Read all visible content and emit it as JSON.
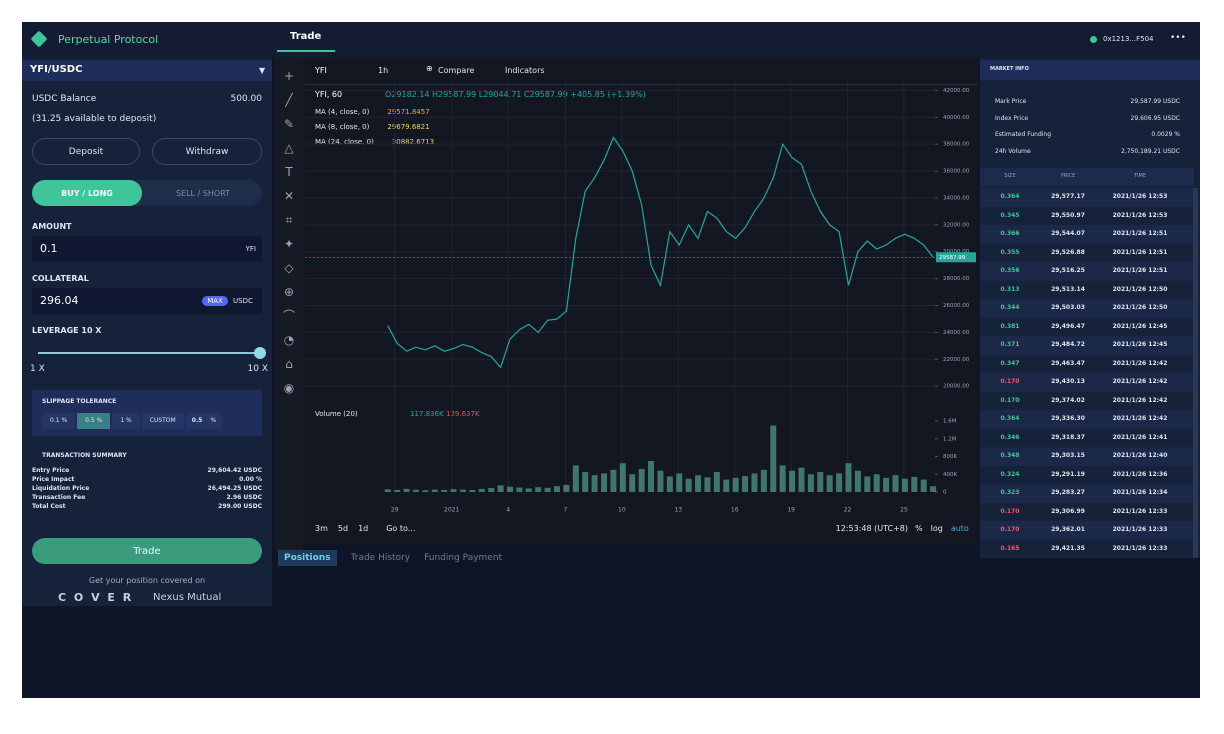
{
  "header": {
    "logo": "Perpetual Protocol",
    "tab": "Trade",
    "wallet": "0x1213...F504",
    "menu": "•••"
  },
  "order": {
    "pair": "YFI/USDC",
    "balance_label": "USDC Balance",
    "balance": "500.00",
    "available": "(31.25 available to deposit)",
    "deposit": "Deposit",
    "withdraw": "Withdraw",
    "buy": "BUY / LONG",
    "sell": "SELL / SHORT",
    "amount_label": "AMOUNT",
    "amount": "0.1",
    "amount_unit": "YFI",
    "collateral_label": "COLLATERAL",
    "collateral": "296.04",
    "max": "MAX",
    "collateral_unit": "USDC",
    "leverage_label": "LEVERAGE 10 X",
    "leverage_min": "1 X",
    "leverage_max": "10 X",
    "slippage_title": "SLIPPAGE TOLERANCE",
    "slippage_options": [
      "0.1 %",
      "0.5 %",
      "1 %",
      "CUSTOM"
    ],
    "slippage_custom": "0.5",
    "slippage_unit": "%",
    "summary_title": "TRANSACTION SUMMARY",
    "summary": [
      [
        "Entry Price",
        "29,604.42 USDC"
      ],
      [
        "Price Impact",
        "0.00 %"
      ],
      [
        "Liquidation Price",
        "26,494.25 USDC"
      ],
      [
        "Transaction Fee",
        "2.96 USDC"
      ],
      [
        "Total Cost",
        "299.00 USDC"
      ]
    ],
    "trade": "Trade",
    "cover_note": "Get your position covered on",
    "cover_brand": "C O V E R",
    "nexus_brand": "Nexus Mutual"
  },
  "chart_toolbar": {
    "symbol": "YFI",
    "interval": "1h",
    "compare": "Compare",
    "indicators": "Indicators"
  },
  "chart_legend": {
    "title": "YFI, 60",
    "ohlc": "O29182.14 H29587.99 L29044.71 C29587.99 +405.85 (+1.39%)",
    "ma": [
      [
        "MA (4, close, 0)",
        "29571.8457"
      ],
      [
        "MA (8, close, 0)",
        "29679.6821"
      ],
      [
        "MA (24, close, 0)",
        "30882.6713"
      ]
    ],
    "volume": "Volume (20)",
    "volume_values": [
      "117.836K",
      "129.637K"
    ]
  },
  "chart_footer": {
    "ranges": [
      "3m",
      "5d",
      "1d"
    ],
    "goto": "Go to...",
    "clock": "12:53:48 (UTC+8)",
    "options": [
      "%",
      "log",
      "auto"
    ]
  },
  "bottom_tabs": [
    "Positions",
    "Trade History",
    "Funding Payment"
  ],
  "market": {
    "title": "MARKET INFO",
    "info": [
      [
        "Mark Price",
        "29,587.99 USDC"
      ],
      [
        "Index Price",
        "29,606.95 USDC"
      ],
      [
        "Estimated Funding",
        "0.0029 %"
      ],
      [
        "24h Volume",
        "2,750,189.21 USDC"
      ]
    ],
    "columns": [
      "SIZE",
      "PRICE",
      "TIME"
    ],
    "trades": [
      {
        "size": "0.364",
        "price": "29,577.17",
        "time": "2021/1/26 12:53",
        "color": "#3fc59a"
      },
      {
        "size": "0.345",
        "price": "29,550.97",
        "time": "2021/1/26 12:53",
        "color": "#3fc59a"
      },
      {
        "size": "0.366",
        "price": "29,544.07",
        "time": "2021/1/26 12:51",
        "color": "#3fc59a"
      },
      {
        "size": "0.355",
        "price": "29,526.88",
        "time": "2021/1/26 12:51",
        "color": "#3fc59a"
      },
      {
        "size": "0.356",
        "price": "29,516.25",
        "time": "2021/1/26 12:51",
        "color": "#3fc59a"
      },
      {
        "size": "0.313",
        "price": "29,513.14",
        "time": "2021/1/26 12:50",
        "color": "#3fc59a"
      },
      {
        "size": "0.344",
        "price": "29,503.03",
        "time": "2021/1/26 12:50",
        "color": "#3fc59a"
      },
      {
        "size": "0.381",
        "price": "29,496.47",
        "time": "2021/1/26 12:45",
        "color": "#3fc59a"
      },
      {
        "size": "0.371",
        "price": "29,484.72",
        "time": "2021/1/26 12:45",
        "color": "#3fc59a"
      },
      {
        "size": "0.347",
        "price": "29,463.47",
        "time": "2021/1/26 12:42",
        "color": "#3fc59a"
      },
      {
        "size": "0.170",
        "price": "29,430.13",
        "time": "2021/1/26 12:42",
        "color": "#ef5a6f"
      },
      {
        "size": "0.170",
        "price": "29,374.02",
        "time": "2021/1/26 12:42",
        "color": "#3fc59a"
      },
      {
        "size": "0.364",
        "price": "29,336.30",
        "time": "2021/1/26 12:42",
        "color": "#3fc59a"
      },
      {
        "size": "0.346",
        "price": "29,318.37",
        "time": "2021/1/26 12:41",
        "color": "#3fc59a"
      },
      {
        "size": "0.348",
        "price": "29,303.15",
        "time": "2021/1/26 12:40",
        "color": "#3fc59a"
      },
      {
        "size": "0.324",
        "price": "29,291.19",
        "time": "2021/1/26 12:36",
        "color": "#3fc59a"
      },
      {
        "size": "0.323",
        "price": "29,283.27",
        "time": "2021/1/26 12:34",
        "color": "#3fc59a"
      },
      {
        "size": "0.170",
        "price": "29,306.99",
        "time": "2021/1/26 12:33",
        "color": "#ef5a6f"
      },
      {
        "size": "0.170",
        "price": "29,362.01",
        "time": "2021/1/26 12:33",
        "color": "#ef5a6f"
      },
      {
        "size": "0.165",
        "price": "29,421.35",
        "time": "2021/1/26 12:33",
        "color": "#ef5a6f"
      }
    ]
  },
  "chart_data": [
    {
      "type": "line",
      "color": "#26a69a",
      "last_price_label": "29587.99",
      "x": [
        0,
        1,
        2,
        3,
        4,
        5,
        6,
        7,
        8,
        9,
        10,
        11,
        12,
        13,
        14,
        15,
        16,
        17,
        18,
        19,
        20,
        21,
        22,
        23,
        24,
        25,
        26,
        27,
        28,
        29,
        30,
        31,
        32,
        33,
        34,
        35,
        36,
        37,
        38,
        39,
        40,
        41,
        42,
        43,
        44,
        45,
        46,
        47,
        48,
        49,
        50,
        51,
        52,
        53,
        54,
        55,
        56,
        57,
        58
      ],
      "values": [
        24500,
        23200,
        22600,
        22900,
        22700,
        23000,
        22600,
        22800,
        23100,
        22900,
        22500,
        22200,
        21400,
        23500,
        24200,
        24600,
        24000,
        24900,
        25000,
        25600,
        31000,
        34500,
        35500,
        36800,
        38500,
        37500,
        36000,
        33500,
        29000,
        27500,
        31500,
        30500,
        32000,
        31000,
        33000,
        32500,
        31500,
        31000,
        31800,
        33000,
        34000,
        35500,
        38000,
        37000,
        36500,
        34500,
        33000,
        32000,
        31500,
        27500,
        30000,
        30800,
        30200,
        30500,
        31000,
        31300,
        31000,
        30500,
        29587.99
      ],
      "xlim": [
        -8.8,
        58.2
      ],
      "ylim": [
        18600,
        42700
      ],
      "xticks": [
        {
          "value": 0.74,
          "label": "29"
        },
        {
          "value": 6.8,
          "label": "2021"
        },
        {
          "value": 12.8,
          "label": "4"
        },
        {
          "value": 18.9,
          "label": "7"
        },
        {
          "value": 24.9,
          "label": "10"
        },
        {
          "value": 30.9,
          "label": "13"
        },
        {
          "value": 36.9,
          "label": "16"
        },
        {
          "value": 42.9,
          "label": "19"
        },
        {
          "value": 48.9,
          "label": "22"
        },
        {
          "value": 54.9,
          "label": "25"
        }
      ],
      "yticks": [
        {
          "value": 42000,
          "label": "42000.00"
        },
        {
          "value": 40000,
          "label": "40000.00"
        },
        {
          "value": 38000,
          "label": "38000.00"
        },
        {
          "value": 36000,
          "label": "36000.00"
        },
        {
          "value": 34000,
          "label": "34000.00"
        },
        {
          "value": 32000,
          "label": "32000.00"
        },
        {
          "value": 30000,
          "label": "30000.00"
        },
        {
          "value": 28000,
          "label": "28000.00"
        },
        {
          "value": 26000,
          "label": "26000.00"
        },
        {
          "value": 24000,
          "label": "24000.00"
        },
        {
          "value": 22000,
          "label": "22000.00"
        },
        {
          "value": 20000,
          "label": "20000.00"
        }
      ],
      "grid": true
    },
    {
      "type": "bar",
      "color": "#4c8f7f",
      "x": [
        0,
        1,
        2,
        3,
        4,
        5,
        6,
        7,
        8,
        9,
        10,
        11,
        12,
        13,
        14,
        15,
        16,
        17,
        18,
        19,
        20,
        21,
        22,
        23,
        24,
        25,
        26,
        27,
        28,
        29,
        30,
        31,
        32,
        33,
        34,
        35,
        36,
        37,
        38,
        39,
        40,
        41,
        42,
        43,
        44,
        45,
        46,
        47,
        48,
        49,
        50,
        51,
        52,
        53,
        54,
        55,
        56,
        57,
        58
      ],
      "values": [
        60000,
        45000,
        70000,
        50000,
        40000,
        55000,
        48000,
        65000,
        52000,
        44000,
        70000,
        90000,
        150000,
        120000,
        100000,
        80000,
        110000,
        95000,
        130000,
        160000,
        600000,
        450000,
        380000,
        420000,
        500000,
        650000,
        400000,
        520000,
        700000,
        480000,
        350000,
        420000,
        300000,
        380000,
        330000,
        450000,
        280000,
        320000,
        360000,
        420000,
        500000,
        1500000,
        600000,
        480000,
        550000,
        400000,
        450000,
        380000,
        420000,
        650000,
        480000,
        350000,
        400000,
        320000,
        380000,
        300000,
        340000,
        280000,
        130000
      ],
      "xlim": [
        -8.8,
        58.2
      ],
      "ylim": [
        0,
        1850000
      ],
      "yticks": [
        {
          "value": 1600000,
          "label": "1.6M"
        },
        {
          "value": 1200000,
          "label": "1.2M"
        },
        {
          "value": 800000,
          "label": "800K"
        },
        {
          "value": 400000,
          "label": "400K"
        },
        0
      ]
    }
  ]
}
